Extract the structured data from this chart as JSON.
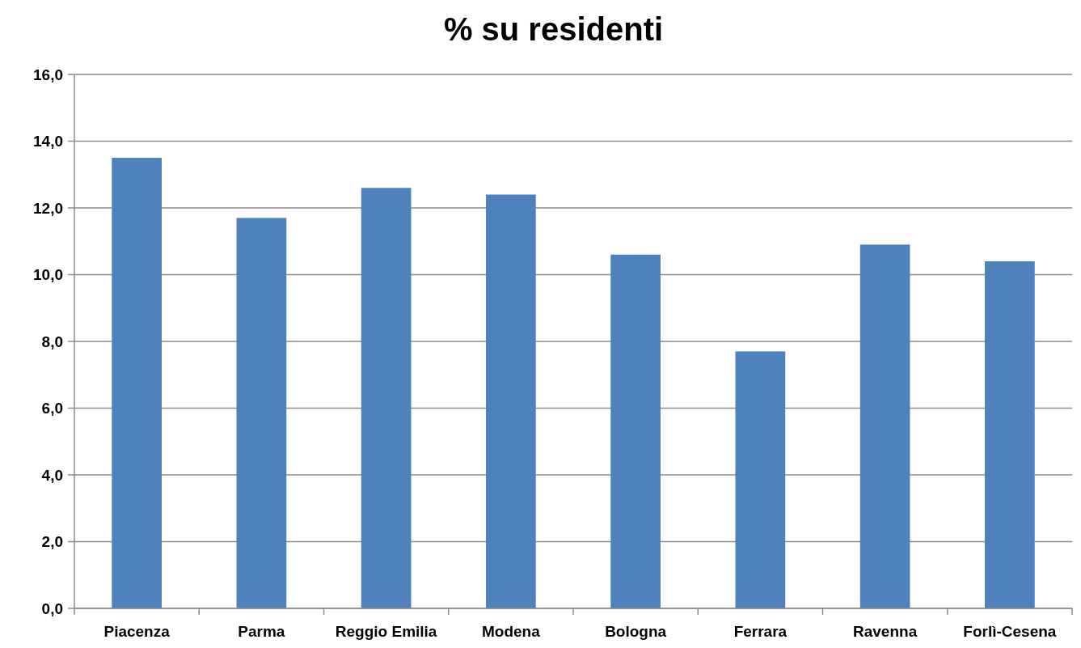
{
  "chart_data": {
    "type": "bar",
    "title": "% su residenti",
    "categories": [
      "Piacenza",
      "Parma",
      "Reggio Emilia",
      "Modena",
      "Bologna",
      "Ferrara",
      "Ravenna",
      "Forlì-Cesena"
    ],
    "values": [
      13.5,
      11.7,
      12.6,
      12.4,
      10.6,
      7.7,
      10.9,
      10.4
    ],
    "color": "#4f81bd",
    "ylim": [
      0,
      16
    ],
    "yticks": [
      {
        "value": 0,
        "label": "0,0"
      },
      {
        "value": 2,
        "label": "2,0"
      },
      {
        "value": 4,
        "label": "4,0"
      },
      {
        "value": 6,
        "label": "6,0"
      },
      {
        "value": 8,
        "label": "8,0"
      },
      {
        "value": 10,
        "label": "10,0"
      },
      {
        "value": 12,
        "label": "12,0"
      },
      {
        "value": 14,
        "label": "14,0"
      },
      {
        "value": 16,
        "label": "16,0"
      }
    ],
    "grid": "y"
  }
}
